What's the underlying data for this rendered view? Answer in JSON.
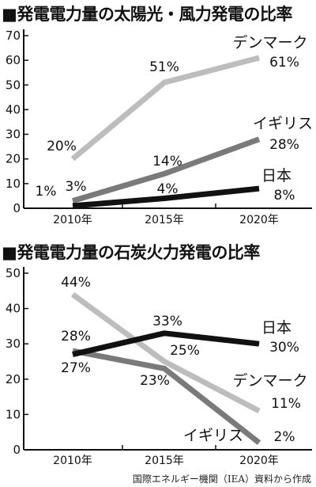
{
  "chart_data": [
    {
      "type": "line",
      "title": "■発電電力量の太陽光・風力発電の比率",
      "categories": [
        "2010年",
        "2015年",
        "2020年"
      ],
      "x": [
        2010,
        2015,
        2020
      ],
      "ylim": [
        0,
        70
      ],
      "yticks": [
        0,
        10,
        20,
        30,
        40,
        50,
        60,
        70
      ],
      "grid": false,
      "series": [
        {
          "name": "デンマーク",
          "values": [
            20,
            51,
            61
          ],
          "labels": [
            "20%",
            "51%",
            "61%"
          ],
          "color": "#bdbdbd"
        },
        {
          "name": "イギリス",
          "values": [
            3,
            14,
            28
          ],
          "labels": [
            "3%",
            "14%",
            "28%"
          ],
          "color": "#7a7a7a"
        },
        {
          "name": "日本",
          "values": [
            1,
            4,
            8
          ],
          "labels": [
            "1%",
            "4%",
            "8%"
          ],
          "color": "#111111"
        }
      ]
    },
    {
      "type": "line",
      "title": "■発電電力量の石炭火力発電の比率",
      "categories": [
        "2010年",
        "2015年",
        "2020年"
      ],
      "x": [
        2010,
        2015,
        2020
      ],
      "ylim": [
        0,
        50
      ],
      "yticks": [
        0,
        10,
        20,
        30,
        40,
        50
      ],
      "grid": false,
      "series": [
        {
          "name": "デンマーク",
          "values": [
            44,
            25,
            11
          ],
          "labels": [
            "44%",
            "25%",
            "11%"
          ],
          "color": "#bdbdbd"
        },
        {
          "name": "イギリス",
          "values": [
            28,
            23,
            2
          ],
          "labels": [
            "28%",
            "23%",
            "2%"
          ],
          "color": "#7a7a7a"
        },
        {
          "name": "日本",
          "values": [
            27,
            33,
            30
          ],
          "labels": [
            "27%",
            "33%",
            "30%"
          ],
          "color": "#111111"
        }
      ]
    }
  ],
  "source": "国際エネルギー機関（IEA）資料から作成"
}
